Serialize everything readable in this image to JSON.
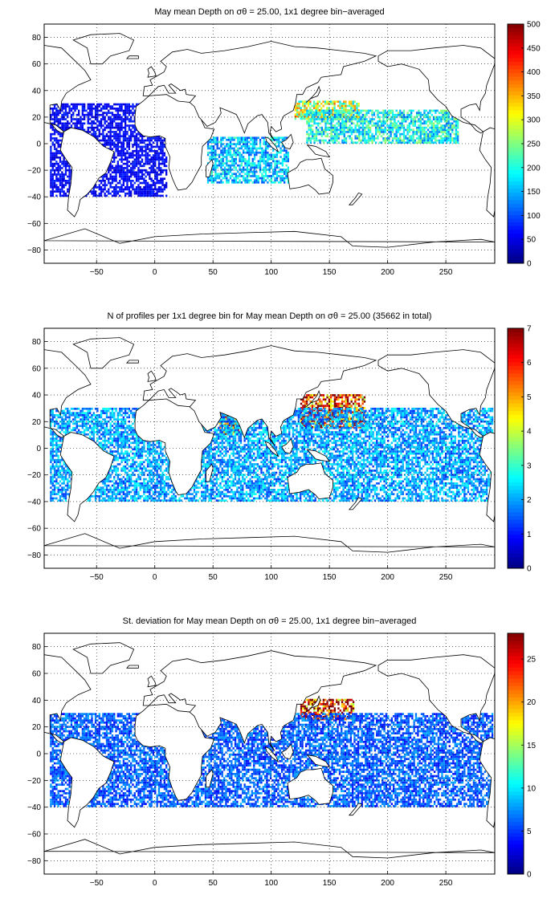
{
  "chart_data": [
    {
      "type": "heatmap",
      "title": "May mean Depth on σθ = 25.00, 1x1 degree bin−averaged",
      "x_ticks": [
        "−50",
        "0",
        "50",
        "100",
        "150",
        "200",
        "250"
      ],
      "y_ticks": [
        "80",
        "60",
        "40",
        "20",
        "0",
        "−20",
        "−40",
        "−60",
        "−80"
      ],
      "xlim": [
        -95,
        292
      ],
      "ylim": [
        -90,
        90
      ],
      "grid": true,
      "colorbar": {
        "range": [
          0,
          500
        ],
        "ticks": [
          "0",
          "50",
          "100",
          "150",
          "200",
          "250",
          "300",
          "350",
          "400",
          "450",
          "500"
        ],
        "colormap": "jet"
      },
      "description_regions": [
        {
          "lon": [
            120,
            175
          ],
          "lat": [
            18,
            32
          ],
          "value": 280
        },
        {
          "lon": [
            130,
            260
          ],
          "lat": [
            0,
            25
          ],
          "value": 190
        },
        {
          "lon": [
            45,
            115
          ],
          "lat": [
            -30,
            5
          ],
          "value": 160
        },
        {
          "lon": [
            -90,
            10
          ],
          "lat": [
            -40,
            30
          ],
          "value": 60
        }
      ]
    },
    {
      "type": "heatmap",
      "title": "N of profiles per 1x1 degree bin for May mean Depth on σθ = 25.00 (35662 in total)",
      "x_ticks": [
        "−50",
        "0",
        "50",
        "100",
        "150",
        "200",
        "250"
      ],
      "y_ticks": [
        "80",
        "60",
        "40",
        "20",
        "0",
        "−20",
        "−40",
        "−60",
        "−80"
      ],
      "xlim": [
        -95,
        292
      ],
      "ylim": [
        -90,
        90
      ],
      "grid": true,
      "colorbar": {
        "range": [
          0,
          7
        ],
        "ticks": [
          "0",
          "1",
          "2",
          "3",
          "4",
          "5",
          "6",
          "7"
        ],
        "colormap": "jet"
      },
      "total_profiles": 35662,
      "description_regions": [
        {
          "lon": [
            125,
            180
          ],
          "lat": [
            15,
            40
          ],
          "value": 6
        },
        {
          "lon": [
            55,
            75
          ],
          "lat": [
            10,
            25
          ],
          "value": 6
        },
        {
          "lon": [
            -90,
            290
          ],
          "lat": [
            -40,
            30
          ],
          "value": 2
        }
      ]
    },
    {
      "type": "heatmap",
      "title": "St. deviation for May mean Depth on σθ = 25.00, 1x1 degree bin−averaged",
      "x_ticks": [
        "−50",
        "0",
        "50",
        "100",
        "150",
        "200",
        "250"
      ],
      "y_ticks": [
        "80",
        "60",
        "40",
        "20",
        "0",
        "−20",
        "−40",
        "−60",
        "−80"
      ],
      "xlim": [
        -95,
        292
      ],
      "ylim": [
        -90,
        90
      ],
      "grid": true,
      "colorbar": {
        "range": [
          0,
          28
        ],
        "ticks": [
          "0",
          "5",
          "10",
          "15",
          "20",
          "25"
        ],
        "colormap": "jet"
      },
      "description_regions": [
        {
          "lon": [
            125,
            170
          ],
          "lat": [
            25,
            40
          ],
          "value": 25
        },
        {
          "lon": [
            -90,
            290
          ],
          "lat": [
            -40,
            30
          ],
          "value": 6
        }
      ]
    }
  ]
}
